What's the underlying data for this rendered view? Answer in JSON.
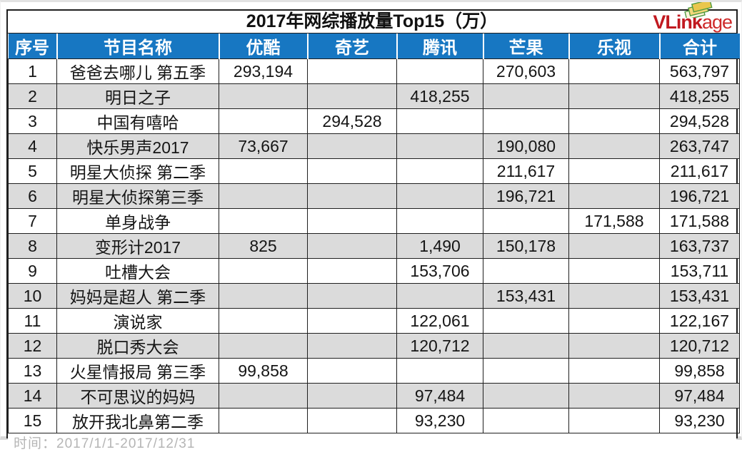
{
  "chart_data": {
    "type": "table",
    "title": "2017年网综播放量Top15（万）",
    "unit": "万",
    "columns": [
      "序号",
      "节目名称",
      "优酷",
      "奇艺",
      "腾讯",
      "芒果",
      "乐视",
      "合计"
    ],
    "column_keys": [
      "rank",
      "name",
      "youku",
      "iqiyi",
      "tencent",
      "mango",
      "letv",
      "total"
    ],
    "rows": [
      [
        "1",
        "爸爸去哪儿 第五季",
        "293,194",
        "",
        "",
        "270,603",
        "",
        "563,797"
      ],
      [
        "2",
        "明日之子",
        "",
        "",
        "418,255",
        "",
        "",
        "418,255"
      ],
      [
        "3",
        "中国有嘻哈",
        "",
        "294,528",
        "",
        "",
        "",
        "294,528"
      ],
      [
        "4",
        "快乐男声2017",
        "73,667",
        "",
        "",
        "190,080",
        "",
        "263,747"
      ],
      [
        "5",
        "明星大侦探 第二季",
        "",
        "",
        "",
        "211,617",
        "",
        "211,617"
      ],
      [
        "6",
        "明星大侦探第三季",
        "",
        "",
        "",
        "196,721",
        "",
        "196,721"
      ],
      [
        "7",
        "单身战争",
        "",
        "",
        "",
        "",
        "171,588",
        "171,588"
      ],
      [
        "8",
        "变形计2017",
        "825",
        "",
        "1,490",
        "150,178",
        "",
        "163,737"
      ],
      [
        "9",
        "吐槽大会",
        "",
        "",
        "153,706",
        "",
        "",
        "153,711"
      ],
      [
        "10",
        "妈妈是超人 第二季",
        "",
        "",
        "",
        "153,431",
        "",
        "153,431"
      ],
      [
        "11",
        "演说家",
        "",
        "",
        "122,061",
        "",
        "",
        "122,167"
      ],
      [
        "12",
        "脱口秀大会",
        "",
        "",
        "120,712",
        "",
        "",
        "120,712"
      ],
      [
        "13",
        "火星情报局 第三季",
        "99,858",
        "",
        "",
        "",
        "",
        "99,858"
      ],
      [
        "14",
        "不可思议的妈妈",
        "",
        "",
        "97,484",
        "",
        "",
        "97,484"
      ],
      [
        "15",
        "放开我北鼻第二季",
        "",
        "",
        "93,230",
        "",
        "",
        "93,230"
      ]
    ],
    "footer_label": "时间：",
    "footer_value": "2017/1/1-2017/12/31"
  },
  "logo": {
    "text_bold": "VLink",
    "text_light": "age",
    "color_bold": "#C11920",
    "color_light": "#CE2A2A",
    "icon": "stacked-cards-icon"
  },
  "colors": {
    "header_bg": "#1777C2",
    "stripe": "#DBDBDB",
    "header_text": "#FFFFFF",
    "footer_text": "#B5B5B5",
    "grid_line": "#1F1F1F"
  }
}
